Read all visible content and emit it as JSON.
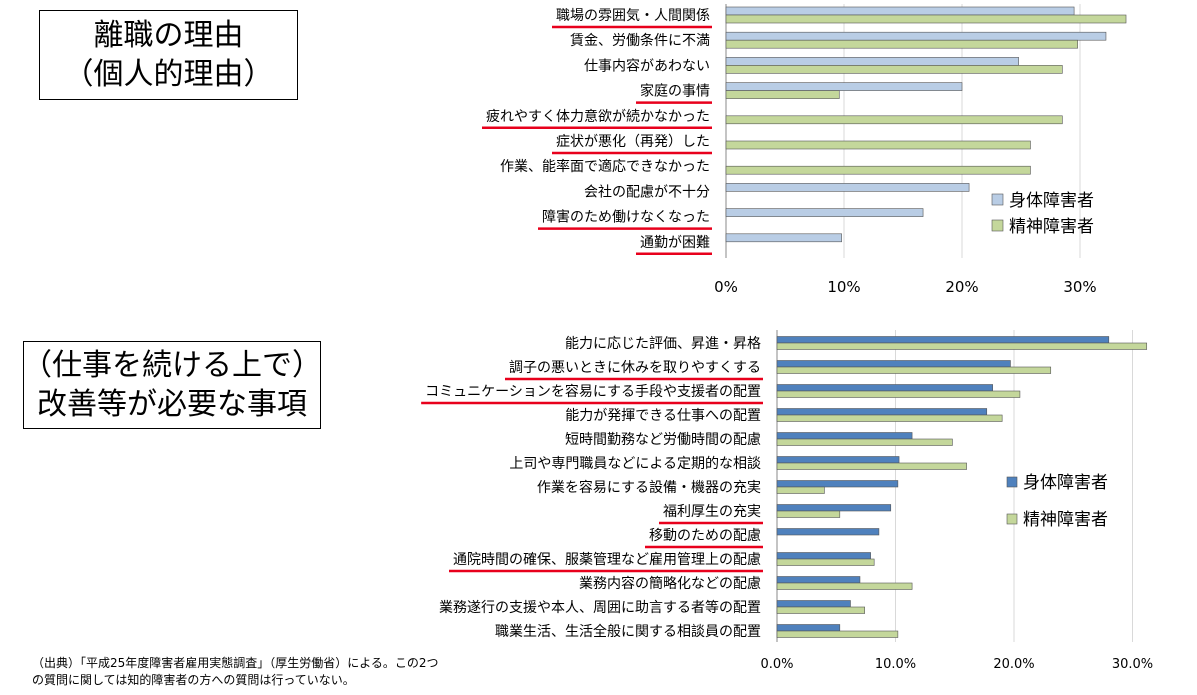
{
  "chart_data": [
    {
      "type": "bar",
      "orientation": "horizontal",
      "title_lines": [
        "離職の理由",
        "（個人的理由）"
      ],
      "categories": [
        "職場の雰囲気・人間関係",
        "賃金、労働条件に不満",
        "仕事内容があわない",
        "家庭の事情",
        "疲れやすく体力意欲が続かなかった",
        "症状が悪化（再発）した",
        "作業、能率面で適応できなかった",
        "会社の配慮が不十分",
        "障害のため働けなくなった",
        "通勤が困難"
      ],
      "underlined": [
        true,
        false,
        false,
        true,
        true,
        true,
        false,
        false,
        true,
        true
      ],
      "series": [
        {
          "name": "身体障害者",
          "color": "#b9cde5",
          "values": [
            29.5,
            32.2,
            24.8,
            20.0,
            0,
            0,
            0,
            20.6,
            16.7,
            9.8
          ]
        },
        {
          "name": "精神障害者",
          "color": "#c4d79b",
          "values": [
            33.9,
            29.8,
            28.5,
            9.6,
            28.5,
            25.8,
            25.8,
            0,
            0,
            0
          ]
        }
      ],
      "xticks": [
        "0%",
        "10%",
        "20%",
        "30%"
      ],
      "xlim": [
        0,
        35
      ],
      "grid": true,
      "legend": "bottom-right"
    },
    {
      "type": "bar",
      "orientation": "horizontal",
      "title_lines": [
        "（仕事を続ける上で）",
        "改善等が必要な事項"
      ],
      "categories": [
        "能力に応じた評価、昇進・昇格",
        "調子の悪いときに休みを取りやすくする",
        "コミュニケーションを容易にする手段や支援者の配置",
        "能力が発揮できる仕事への配置",
        "短時間勤務など労働時間の配慮",
        "上司や専門職員などによる定期的な相談",
        "作業を容易にする設備・機器の充実",
        "福利厚生の充実",
        "移動のための配慮",
        "通院時間の確保、服薬管理など雇用管理上の配慮",
        "業務内容の簡略化などの配慮",
        "業務遂行の支援や本人、周囲に助言する者等の配置",
        "職業生活、生活全般に関する相談員の配置"
      ],
      "underlined": [
        false,
        true,
        true,
        false,
        false,
        false,
        false,
        true,
        true,
        true,
        false,
        false,
        false
      ],
      "series": [
        {
          "name": "身体障害者",
          "color": "#4f81bd",
          "values": [
            28.0,
            19.7,
            18.2,
            17.7,
            11.4,
            10.3,
            10.2,
            9.6,
            8.6,
            7.9,
            7.0,
            6.2,
            5.3
          ]
        },
        {
          "name": "精神障害者",
          "color": "#c4d79b",
          "values": [
            31.2,
            23.1,
            20.5,
            19.0,
            14.8,
            16.0,
            4.0,
            5.3,
            0,
            8.2,
            11.4,
            7.4,
            10.2
          ]
        }
      ],
      "xticks": [
        "0.0%",
        "10.0%",
        "20.0%",
        "30.0%"
      ],
      "xlim": [
        0,
        35
      ],
      "grid": true,
      "legend": "right"
    }
  ],
  "footnote_lines": [
    "（出典）「平成25年度障害者雇用実態調査」（厚生労働省）による。この2つ",
    "の質問に関しては知的障害者の方への質問は行っていない。"
  ],
  "colors": {
    "underline": "#e8001c",
    "gridline": "#d9d9d9",
    "axis": "#888888"
  }
}
